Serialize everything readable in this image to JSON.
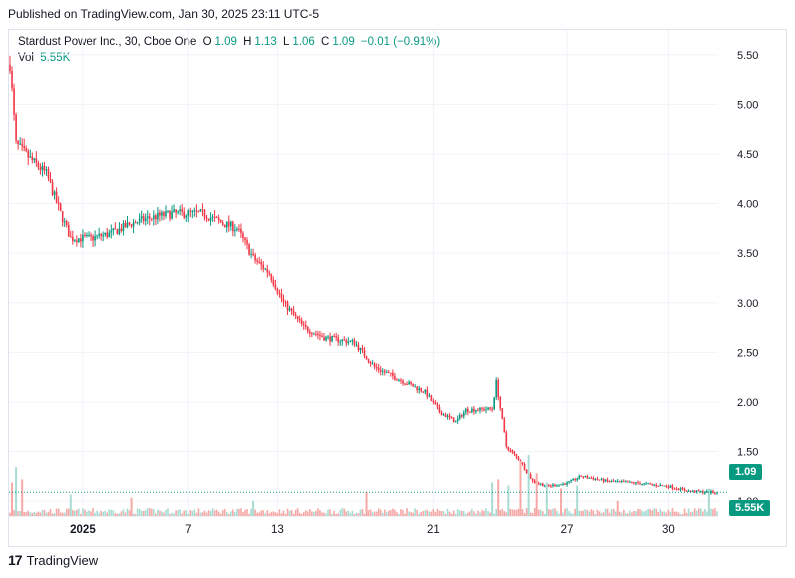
{
  "published": "Published on TradingView.com, Jan 30, 2025 23:11 UTC-5",
  "legend": {
    "name": "Stardust Power Inc., 30, Cboe One",
    "o_key": "O",
    "o_val": "1.09",
    "h_key": "H",
    "h_val": "1.13",
    "l_key": "L",
    "l_val": "1.06",
    "c_key": "C",
    "c_val": "1.09",
    "change": "−0.01 (−0.91%)",
    "vol_key": "Vol",
    "vol_val": "5.55K"
  },
  "last_price_label": "1.09",
  "last_volume_label": "5.55K",
  "brand": "TradingView",
  "colors": {
    "up": "#089981",
    "down": "#f23645",
    "up_vol": "#a8dcd3",
    "down_vol": "#f7a9a7"
  },
  "chart_data": {
    "type": "candlestick",
    "title": "Stardust Power Inc., 30, Cboe One",
    "ylim": [
      0.85,
      5.75
    ],
    "y_ticks": [
      1.0,
      1.5,
      2.0,
      2.5,
      3.0,
      3.5,
      4.0,
      4.5,
      5.0,
      5.5
    ],
    "y_tick_labels": [
      "1.00",
      "1.50",
      "2.00",
      "2.50",
      "3.00",
      "3.50",
      "4.00",
      "4.50",
      "5.00",
      "5.50"
    ],
    "x_ticks": [
      {
        "label": "2025",
        "bar": 36
      },
      {
        "label": "7",
        "bar": 88
      },
      {
        "label": "13",
        "bar": 132
      },
      {
        "label": "21",
        "bar": 209
      },
      {
        "label": "27",
        "bar": 275
      },
      {
        "label": "30",
        "bar": 325
      }
    ],
    "num_bars": 350,
    "last_price": 1.09,
    "anchors": [
      [
        0,
        5.4
      ],
      [
        3,
        4.6
      ],
      [
        10,
        4.45
      ],
      [
        18,
        4.3
      ],
      [
        25,
        3.9
      ],
      [
        30,
        3.65
      ],
      [
        40,
        3.65
      ],
      [
        50,
        3.7
      ],
      [
        60,
        3.8
      ],
      [
        68,
        3.85
      ],
      [
        80,
        3.9
      ],
      [
        95,
        3.9
      ],
      [
        105,
        3.8
      ],
      [
        112,
        3.75
      ],
      [
        120,
        3.45
      ],
      [
        128,
        3.3
      ],
      [
        135,
        3.0
      ],
      [
        145,
        2.75
      ],
      [
        155,
        2.65
      ],
      [
        170,
        2.6
      ],
      [
        180,
        2.35
      ],
      [
        195,
        2.2
      ],
      [
        205,
        2.1
      ],
      [
        212,
        1.9
      ],
      [
        220,
        1.8
      ],
      [
        225,
        1.92
      ],
      [
        238,
        1.93
      ],
      [
        240,
        2.2
      ],
      [
        245,
        1.55
      ],
      [
        252,
        1.4
      ],
      [
        258,
        1.2
      ],
      [
        265,
        1.15
      ],
      [
        275,
        1.18
      ],
      [
        282,
        1.25
      ],
      [
        295,
        1.2
      ],
      [
        310,
        1.18
      ],
      [
        325,
        1.15
      ],
      [
        335,
        1.1
      ],
      [
        345,
        1.09
      ]
    ],
    "volume_spikes": [
      {
        "bar": 1,
        "v": 0.55
      },
      {
        "bar": 3,
        "v": 0.8
      },
      {
        "bar": 6,
        "v": 0.6
      },
      {
        "bar": 30,
        "v": 0.35
      },
      {
        "bar": 60,
        "v": 0.3
      },
      {
        "bar": 120,
        "v": 0.25
      },
      {
        "bar": 176,
        "v": 0.4
      },
      {
        "bar": 238,
        "v": 0.55
      },
      {
        "bar": 241,
        "v": 0.6
      },
      {
        "bar": 246,
        "v": 0.5
      },
      {
        "bar": 252,
        "v": 0.9
      },
      {
        "bar": 256,
        "v": 1.0
      },
      {
        "bar": 260,
        "v": 0.7
      },
      {
        "bar": 265,
        "v": 0.55
      },
      {
        "bar": 272,
        "v": 0.45
      },
      {
        "bar": 280,
        "v": 0.5
      },
      {
        "bar": 300,
        "v": 0.25
      },
      {
        "bar": 345,
        "v": 0.45
      }
    ],
    "xlabel": "",
    "ylabel": ""
  }
}
